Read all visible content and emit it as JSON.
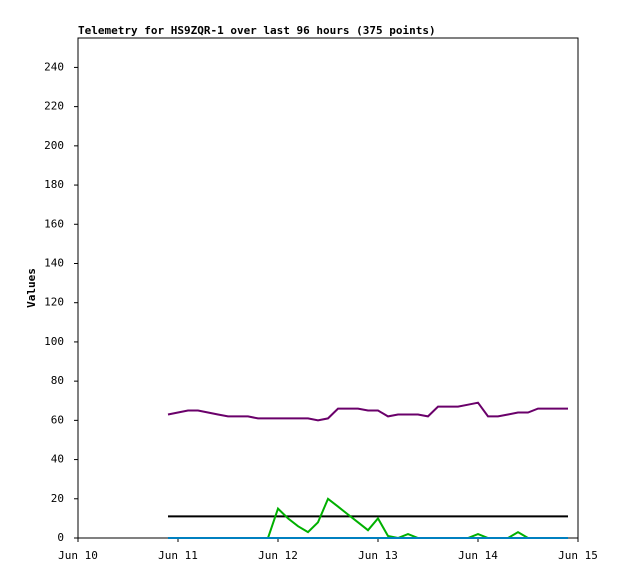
{
  "chart_data": {
    "type": "line",
    "title": "Telemetry for HS9ZQR-1 over last 96 hours (375 points)",
    "y_label": "Values",
    "xlim": [
      0,
      5
    ],
    "xticks": [
      {
        "value": 0,
        "label": "Jun 10"
      },
      {
        "value": 1,
        "label": "Jun 11"
      },
      {
        "value": 2,
        "label": "Jun 12"
      },
      {
        "value": 3,
        "label": "Jun 13"
      },
      {
        "value": 4,
        "label": "Jun 14"
      },
      {
        "value": 5,
        "label": "Jun 15"
      }
    ],
    "ylim": [
      0,
      255
    ],
    "yticks": [
      0,
      20,
      40,
      60,
      80,
      100,
      120,
      140,
      160,
      180,
      200,
      220,
      240
    ],
    "x": [
      0.9,
      1.0,
      1.1,
      1.2,
      1.3,
      1.4,
      1.5,
      1.6,
      1.7,
      1.8,
      1.9,
      2.0,
      2.1,
      2.2,
      2.3,
      2.4,
      2.5,
      2.6,
      2.7,
      2.8,
      2.9,
      3.0,
      3.1,
      3.2,
      3.3,
      3.4,
      3.5,
      3.6,
      3.7,
      3.8,
      3.9,
      4.0,
      4.1,
      4.2,
      4.3,
      4.4,
      4.5,
      4.6,
      4.7,
      4.8,
      4.9
    ],
    "series": [
      {
        "color": "#6a006a",
        "values": [
          63,
          64,
          65,
          65,
          64,
          63,
          62,
          62,
          62,
          61,
          61,
          61,
          61,
          61,
          61,
          60,
          61,
          66,
          66,
          66,
          65,
          65,
          62,
          63,
          63,
          63,
          62,
          67,
          67,
          67,
          68,
          69,
          62,
          62,
          63,
          64,
          64,
          66,
          66,
          66,
          66
        ]
      },
      {
        "color": "#000000",
        "values": [
          11,
          11,
          11,
          11,
          11,
          11,
          11,
          11,
          11,
          11,
          11,
          11,
          11,
          11,
          11,
          11,
          11,
          11,
          11,
          11,
          11,
          11,
          11,
          11,
          11,
          11,
          11,
          11,
          11,
          11,
          11,
          11,
          11,
          11,
          11,
          11,
          11,
          11,
          11,
          11,
          11
        ]
      },
      {
        "color": "#00b000",
        "values": [
          0,
          0,
          0,
          0,
          0,
          0,
          0,
          0,
          0,
          0,
          0,
          15,
          10,
          6,
          3,
          8,
          20,
          16,
          12,
          8,
          4,
          10,
          1,
          0,
          2,
          0,
          0,
          0,
          0,
          0,
          0,
          2,
          0,
          0,
          0,
          3,
          0,
          0,
          0,
          0,
          0
        ]
      },
      {
        "color": "#0080c0",
        "values": [
          0,
          0,
          0,
          0,
          0,
          0,
          0,
          0,
          0,
          0,
          0,
          0,
          0,
          0,
          0,
          0,
          0,
          0,
          0,
          0,
          0,
          0,
          0,
          0,
          0,
          0,
          0,
          0,
          0,
          0,
          0,
          0,
          0,
          0,
          0,
          0,
          0,
          0,
          0,
          0,
          0
        ]
      }
    ]
  }
}
